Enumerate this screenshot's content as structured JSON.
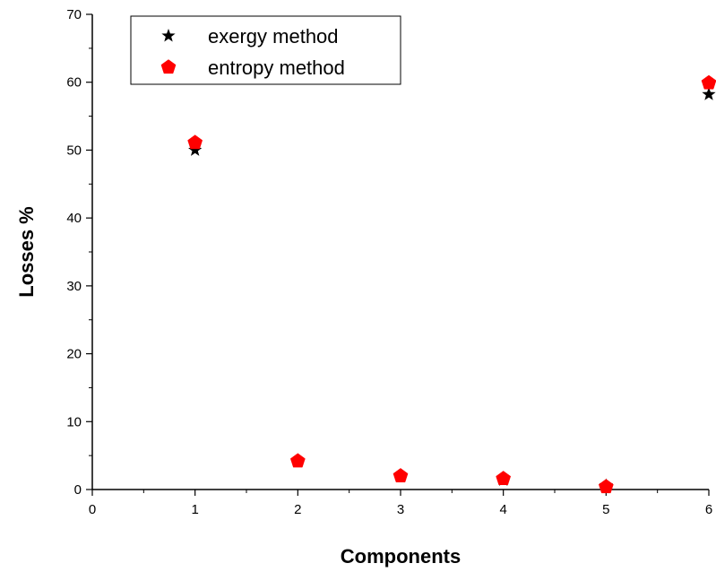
{
  "chart_data": {
    "type": "scatter",
    "title": "",
    "xlabel": "Components",
    "ylabel": "Losses %",
    "xlim": [
      0,
      6
    ],
    "ylim": [
      0,
      70
    ],
    "x_ticks": [
      "0",
      "1",
      "2",
      "3",
      "4",
      "5",
      "6"
    ],
    "y_ticks": [
      "0",
      "10",
      "20",
      "30",
      "40",
      "50",
      "60",
      "70"
    ],
    "grid": false,
    "legend_position": "top-left",
    "series": [
      {
        "name": "exergy method",
        "marker": "star",
        "color": "#000000",
        "x": [
          1,
          2,
          3,
          4,
          5,
          6
        ],
        "y": [
          50,
          4.1,
          1.9,
          1.4,
          0.6,
          58.2
        ]
      },
      {
        "name": "entropy method",
        "marker": "pentagon",
        "color": "#ff0000",
        "x": [
          1,
          2,
          3,
          4,
          5,
          6
        ],
        "y": [
          51.1,
          4.2,
          2.0,
          1.6,
          0.4,
          59.9
        ]
      }
    ]
  }
}
